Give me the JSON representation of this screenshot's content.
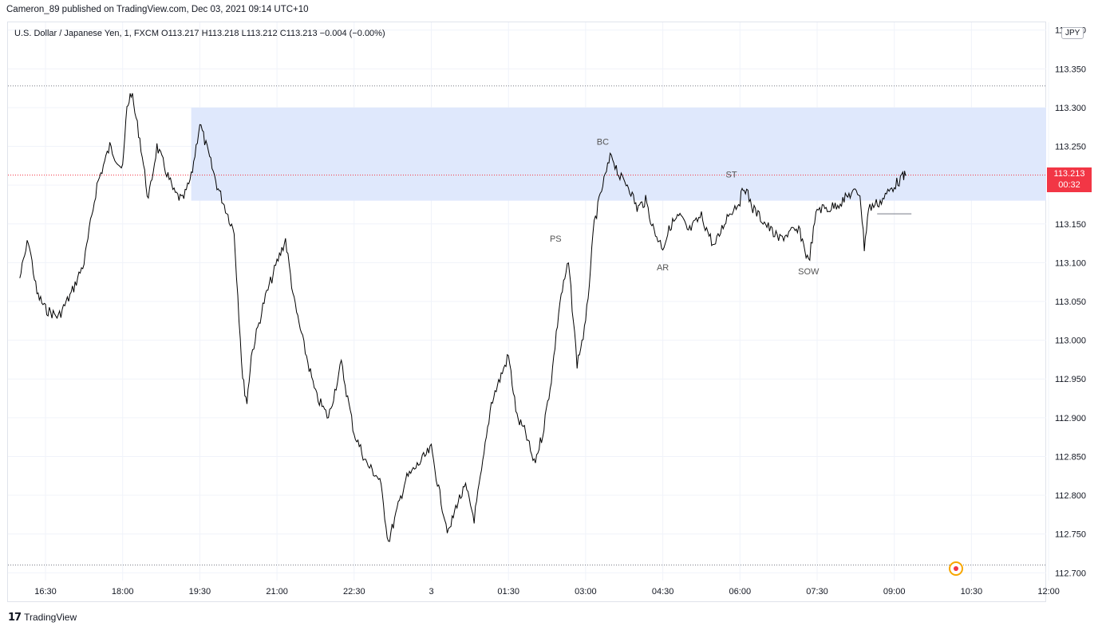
{
  "header": {
    "publisher": "Cameron_89 published on TradingView.com, Dec 03, 2021 09:14 UTC+10"
  },
  "legend": {
    "symbol": "U.S. Dollar / Japanese Yen, 1, FXCM",
    "open": "O113.217",
    "high": "H113.218",
    "low": "L113.212",
    "close": "C113.213",
    "change": "−0.004 (−0.00%)"
  },
  "currency_label": "JPY",
  "price_tag": {
    "price": "113.213",
    "countdown": "00:32",
    "color": "#f23645"
  },
  "branding": {
    "logo_text": "TradingView"
  },
  "colors": {
    "zone": "#dfe8fc",
    "candles": "#000000",
    "grid": "#f0f3fa",
    "last_price_line": "#f23645"
  },
  "chart_data": {
    "type": "line",
    "title": "",
    "xlabel": "",
    "ylabel": "",
    "ylim": [
      112.69,
      113.41
    ],
    "x_ticks": [
      "16:30",
      "18:00",
      "19:30",
      "21:00",
      "22:30",
      "3",
      "01:30",
      "03:00",
      "04:30",
      "06:00",
      "07:30",
      "09:00",
      "10:30",
      "12:00"
    ],
    "y_ticks": [
      113.4,
      113.35,
      113.3,
      113.25,
      113.2,
      113.15,
      113.1,
      113.05,
      113.0,
      112.95,
      112.9,
      112.85,
      112.8,
      112.75,
      112.7
    ],
    "y_tick_labels": [
      "113.400",
      "113.350",
      "113.300",
      "113.250",
      "113.200",
      "113.150",
      "113.100",
      "113.050",
      "113.000",
      "112.950",
      "112.900",
      "112.850",
      "112.800",
      "112.750",
      "112.700"
    ],
    "series": [
      {
        "points": [
          [
            "16:00",
            113.08
          ],
          [
            "16:10",
            113.13
          ],
          [
            "16:20",
            113.06
          ],
          [
            "16:30",
            113.04
          ],
          [
            "16:45",
            113.03
          ],
          [
            "17:00",
            113.06
          ],
          [
            "17:15",
            113.1
          ],
          [
            "17:30",
            113.2
          ],
          [
            "17:45",
            113.25
          ],
          [
            "18:00",
            113.22
          ],
          [
            "18:05",
            113.3
          ],
          [
            "18:10",
            113.32
          ],
          [
            "18:20",
            113.26
          ],
          [
            "18:30",
            113.18
          ],
          [
            "18:40",
            113.25
          ],
          [
            "18:50",
            113.22
          ],
          [
            "19:00",
            113.19
          ],
          [
            "19:10",
            113.18
          ],
          [
            "19:20",
            113.21
          ],
          [
            "19:30",
            113.28
          ],
          [
            "19:40",
            113.24
          ],
          [
            "19:50",
            113.2
          ],
          [
            "20:00",
            113.17
          ],
          [
            "20:10",
            113.14
          ],
          [
            "20:20",
            112.95
          ],
          [
            "20:25",
            112.92
          ],
          [
            "20:30",
            112.98
          ],
          [
            "20:45",
            113.05
          ],
          [
            "21:00",
            113.1
          ],
          [
            "21:10",
            113.13
          ],
          [
            "21:20",
            113.05
          ],
          [
            "21:30",
            113.0
          ],
          [
            "21:45",
            112.93
          ],
          [
            "22:00",
            112.9
          ],
          [
            "22:15",
            112.97
          ],
          [
            "22:30",
            112.88
          ],
          [
            "22:45",
            112.84
          ],
          [
            "23:00",
            112.82
          ],
          [
            "23:10",
            112.74
          ],
          [
            "23:20",
            112.78
          ],
          [
            "23:30",
            112.82
          ],
          [
            "23:45",
            112.84
          ],
          [
            "00:00",
            112.86
          ],
          [
            "00:10",
            112.8
          ],
          [
            "00:20",
            112.75
          ],
          [
            "00:30",
            112.79
          ],
          [
            "00:40",
            112.81
          ],
          [
            "00:50",
            112.77
          ],
          [
            "01:00",
            112.84
          ],
          [
            "01:10",
            112.92
          ],
          [
            "01:20",
            112.95
          ],
          [
            "01:30",
            112.98
          ],
          [
            "01:40",
            112.9
          ],
          [
            "01:50",
            112.88
          ],
          [
            "02:00",
            112.84
          ],
          [
            "02:10",
            112.88
          ],
          [
            "02:20",
            112.95
          ],
          [
            "02:30",
            113.05
          ],
          [
            "02:40",
            113.1
          ],
          [
            "02:50",
            112.97
          ],
          [
            "03:00",
            113.02
          ],
          [
            "03:10",
            113.15
          ],
          [
            "03:20",
            113.2
          ],
          [
            "03:30",
            113.24
          ],
          [
            "03:40",
            113.21
          ],
          [
            "03:50",
            113.2
          ],
          [
            "04:00",
            113.17
          ],
          [
            "04:10",
            113.18
          ],
          [
            "04:20",
            113.14
          ],
          [
            "04:30",
            113.12
          ],
          [
            "04:40",
            113.15
          ],
          [
            "04:50",
            113.16
          ],
          [
            "05:00",
            113.14
          ],
          [
            "05:15",
            113.16
          ],
          [
            "05:30",
            113.12
          ],
          [
            "05:45",
            113.16
          ],
          [
            "06:00",
            113.18
          ],
          [
            "06:05",
            113.2
          ],
          [
            "06:15",
            113.17
          ],
          [
            "06:30",
            113.15
          ],
          [
            "06:45",
            113.13
          ],
          [
            "07:00",
            113.14
          ],
          [
            "07:10",
            113.14
          ],
          [
            "07:20",
            113.1
          ],
          [
            "07:30",
            113.17
          ],
          [
            "07:45",
            113.17
          ],
          [
            "08:00",
            113.18
          ],
          [
            "08:10",
            113.19
          ],
          [
            "08:20",
            113.19
          ],
          [
            "08:25",
            113.12
          ],
          [
            "08:30",
            113.17
          ],
          [
            "08:45",
            113.18
          ],
          [
            "09:00",
            113.2
          ],
          [
            "09:10",
            113.21
          ],
          [
            "09:14",
            113.213
          ]
        ]
      }
    ],
    "annotations": [
      {
        "text": "PS",
        "x": "02:25",
        "y": 113.127
      },
      {
        "text": "BC",
        "x": "03:20",
        "y": 113.252
      },
      {
        "text": "AR",
        "x": "04:30",
        "y": 113.09
      },
      {
        "text": "ST",
        "x": "05:50",
        "y": 113.21
      },
      {
        "text": "SOW",
        "x": "07:20",
        "y": 113.085
      }
    ],
    "zone": {
      "x_start": "19:20",
      "y_low": 113.18,
      "y_high": 113.3
    },
    "horizontal_lines": [
      {
        "y": 113.328,
        "style": "dotted"
      },
      {
        "y": 112.71,
        "style": "dotted"
      },
      {
        "y": 113.213,
        "style": "dotted-red"
      }
    ],
    "support_segment": {
      "x_start": "08:40",
      "x_end": "09:20",
      "y": 113.163
    },
    "grid": true,
    "legend": "none"
  }
}
